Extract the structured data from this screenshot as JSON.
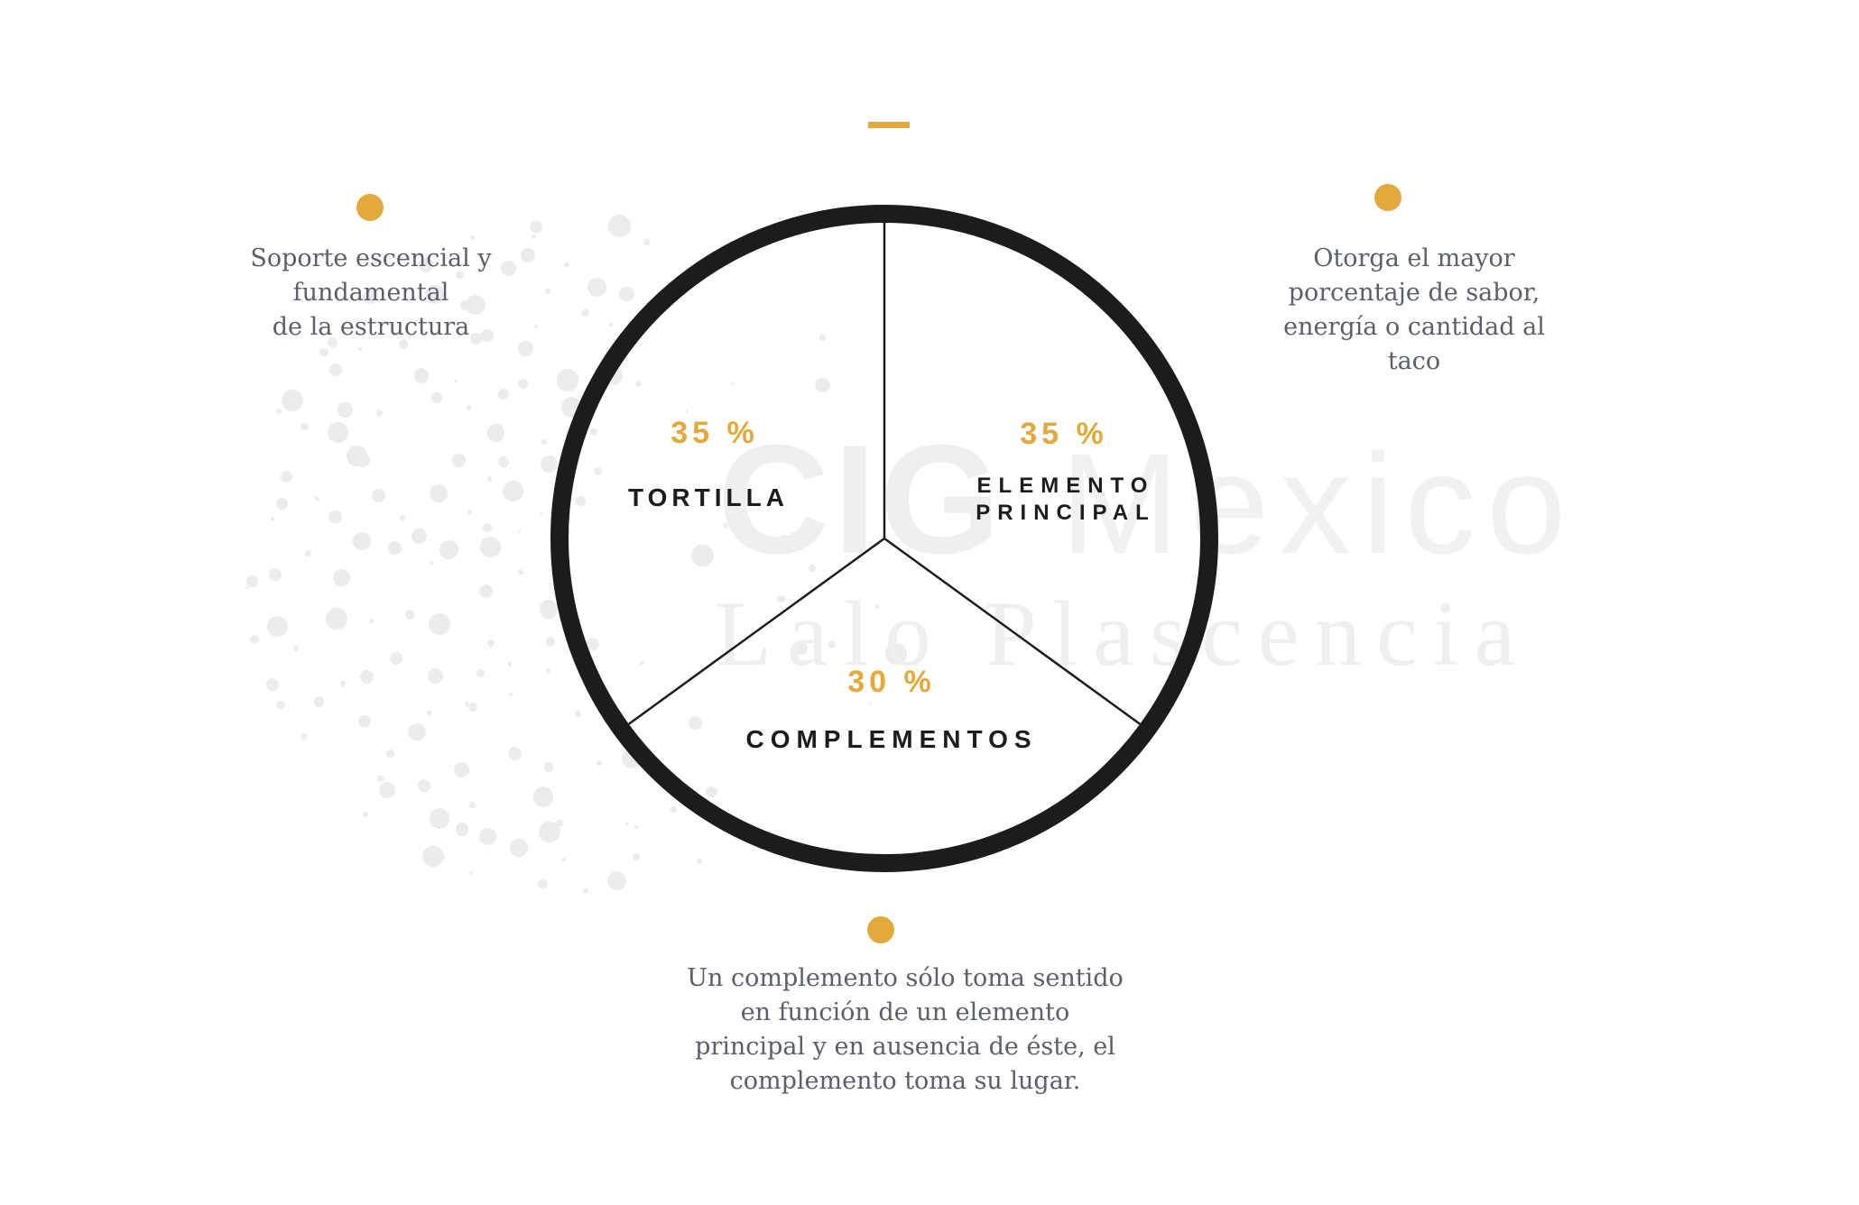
{
  "colors": {
    "accent_gold": "#e4a93c",
    "ink_black": "#1c1c1e",
    "note_gray": "#5a5f69",
    "watermark_gray": "#efefef",
    "decor_dot_gray": "#ececec",
    "background": "#ffffff"
  },
  "watermark": {
    "bold": "CIG",
    "light": "Mexico",
    "line2": "Lalo Plascencia"
  },
  "chart_data": {
    "type": "pie",
    "title": "",
    "categories": [
      "TORTILLA",
      "ELEMENTO PRINCIPAL",
      "COMPLEMENTOS"
    ],
    "values": [
      35,
      35,
      30
    ],
    "unit": "%",
    "legend": false,
    "layout_hint": "outlined circle with thin radial dividers; first boundary at 12 o'clock, labels inside segments, annotations outside with gold bullet dots",
    "annotations": [
      {
        "target": "TORTILLA",
        "text": "Soporte escencial y fundamental de la estructura"
      },
      {
        "target": "ELEMENTO PRINCIPAL",
        "text": "Otorga el mayor porcentaje de sabor, energía o cantidad al taco"
      },
      {
        "target": "COMPLEMENTOS",
        "text": "Un complemento sólo toma sentido en función de un elemento principal y en ausencia de éste, el complemento toma su lugar."
      }
    ]
  },
  "segments": {
    "tortilla": {
      "pct": "35 %",
      "label": "TORTILLA"
    },
    "principal": {
      "pct": "35 %",
      "label": "ELEMENTO\nPRINCIPAL"
    },
    "complementos": {
      "pct": "30 %",
      "label": "COMPLEMENTOS"
    }
  },
  "annotations": {
    "left": {
      "text": "Soporte escencial y\nfundamental\nde la estructura"
    },
    "right": {
      "text": "Otorga el mayor\nporcentaje de sabor,\nenergía o cantidad al\ntaco"
    },
    "bottom": {
      "text": "Un complemento sólo toma sentido\nen función de un elemento\nprincipal y en ausencia de éste, el\ncomplemento toma su lugar."
    }
  }
}
